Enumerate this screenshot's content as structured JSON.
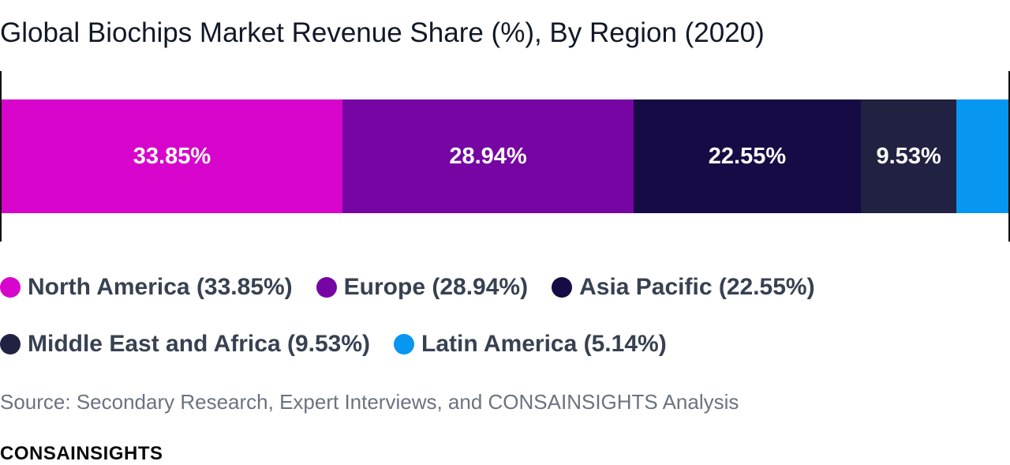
{
  "title": "Global Biochips Market Revenue Share (%), By Region (2020)",
  "chart_data": {
    "type": "bar",
    "orientation": "horizontal-stacked-100",
    "title": "Global Biochips Market Revenue Share (%), By Region (2020)",
    "categories": [
      "North America",
      "Europe",
      "Asia Pacific",
      "Middle East and Africa",
      "Latin America"
    ],
    "values": [
      33.85,
      28.94,
      22.55,
      9.53,
      5.14
    ],
    "segment_labels": [
      "33.85%",
      "28.94%",
      "22.55%",
      "9.53%",
      ""
    ],
    "colors": [
      "#d705cb",
      "#7605a3",
      "#170b45",
      "#212142",
      "#0796f0"
    ],
    "legend": [
      "North America (33.85%)",
      "Europe (28.94%)",
      "Asia Pacific (22.55%)",
      "Middle East and Africa (9.53%)",
      "Latin America (5.14%)"
    ],
    "legend_position": "bottom",
    "grid": false
  },
  "source": "Source: Secondary Research, Expert Interviews, and CONSAINSIGHTS Analysis",
  "brand": "CONSAINSIGHTS"
}
